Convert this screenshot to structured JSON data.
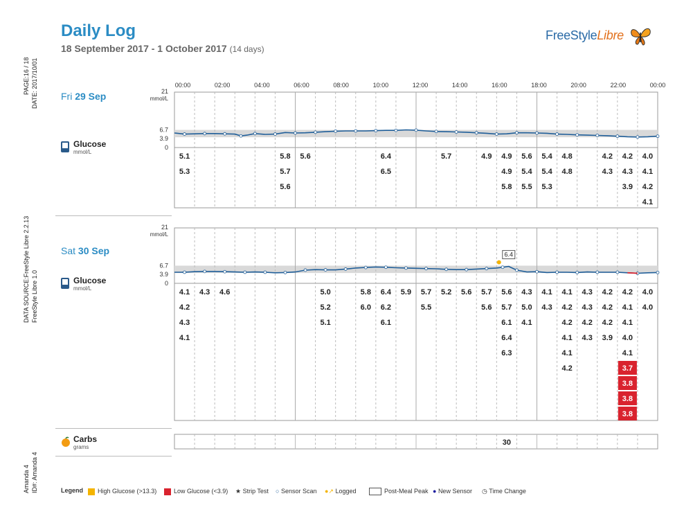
{
  "header": {
    "title": "Daily Log",
    "date_range": "18 September 2017 - 1 October 2017",
    "days": "(14 days)",
    "logo_free": "FreeStyle",
    "logo_libre": "Libre"
  },
  "side": {
    "page": "PAGE:16 / 18",
    "date": "DATE: 2017/10/01",
    "data_source": "DATA SOURCE:FreeStyle Libre 2.2.13",
    "device": "FreeStyle Libre 1.0",
    "name": "Amanda 4",
    "id": "ID#: Amanda 4"
  },
  "time_labels": [
    "00:00",
    "02:00",
    "04:00",
    "06:00",
    "08:00",
    "10:00",
    "12:00",
    "14:00",
    "16:00",
    "18:00",
    "20:00",
    "22:00",
    "00:00"
  ],
  "days": [
    {
      "weekday": "Fri",
      "date": "29 Sep",
      "glucose_label": "Glucose",
      "glucose_unit": "mmol/L",
      "y_top": "21",
      "y_unit": "mmol/L",
      "y_high": "6.7",
      "y_low": "3.9",
      "y_zero": "0",
      "peak_label": "",
      "readings": [
        {
          "col": 0,
          "values": [
            "5.1",
            "5.3"
          ]
        },
        {
          "col": 5,
          "values": [
            "5.8",
            "5.7",
            "5.6"
          ]
        },
        {
          "col": 6,
          "values": [
            "5.6"
          ]
        },
        {
          "col": 10,
          "values": [
            "6.4",
            "6.5"
          ]
        },
        {
          "col": 13,
          "values": [
            "5.7"
          ]
        },
        {
          "col": 15,
          "values": [
            "4.9"
          ]
        },
        {
          "col": 16,
          "values": [
            "4.9",
            "4.9",
            "5.8"
          ]
        },
        {
          "col": 17,
          "values": [
            "5.6",
            "5.4",
            "5.5"
          ]
        },
        {
          "col": 18,
          "values": [
            "5.4",
            "5.4",
            "5.3"
          ]
        },
        {
          "col": 19,
          "values": [
            "4.8",
            "4.8"
          ]
        },
        {
          "col": 21,
          "values": [
            "4.2",
            "4.3"
          ]
        },
        {
          "col": 22,
          "values": [
            "4.2",
            "4.3",
            "3.9"
          ]
        },
        {
          "col": 23,
          "values": [
            "4.0",
            "4.1",
            "4.2",
            "4.1"
          ]
        }
      ]
    },
    {
      "weekday": "Sat",
      "date": "30 Sep",
      "glucose_label": "Glucose",
      "glucose_unit": "mmol/L",
      "y_top": "21",
      "y_unit": "mmol/L",
      "y_high": "6.7",
      "y_low": "3.9",
      "y_zero": "0",
      "peak_label": "6.4",
      "readings": [
        {
          "col": 0,
          "values": [
            "4.1",
            "4.2",
            "4.3",
            "4.1"
          ]
        },
        {
          "col": 1,
          "values": [
            "4.3"
          ]
        },
        {
          "col": 2,
          "values": [
            "4.6"
          ]
        },
        {
          "col": 7,
          "values": [
            "5.0",
            "5.2",
            "5.1"
          ]
        },
        {
          "col": 9,
          "values": [
            "5.8",
            "6.0"
          ]
        },
        {
          "col": 10,
          "values": [
            "6.4",
            "6.2",
            "6.1"
          ]
        },
        {
          "col": 11,
          "values": [
            "5.9"
          ]
        },
        {
          "col": 12,
          "values": [
            "5.7",
            "5.5"
          ]
        },
        {
          "col": 13,
          "values": [
            "5.2"
          ]
        },
        {
          "col": 14,
          "values": [
            "5.6"
          ]
        },
        {
          "col": 15,
          "values": [
            "5.7",
            "5.6"
          ]
        },
        {
          "col": 16,
          "values": [
            "5.6",
            "5.7",
            "6.1",
            "6.4",
            "6.3"
          ]
        },
        {
          "col": 17,
          "values": [
            "4.3",
            "5.0",
            "4.1"
          ]
        },
        {
          "col": 18,
          "values": [
            "4.1",
            "4.3"
          ]
        },
        {
          "col": 19,
          "values": [
            "4.1",
            "4.2",
            "4.2",
            "4.1",
            "4.1",
            "4.2"
          ]
        },
        {
          "col": 20,
          "values": [
            "4.3",
            "4.3",
            "4.2",
            "4.3"
          ]
        },
        {
          "col": 21,
          "values": [
            "4.2",
            "4.2",
            "4.2",
            "3.9"
          ]
        },
        {
          "col": 22,
          "values": [
            "4.2",
            "4.1",
            "4.1",
            "4.0",
            "4.1",
            "3.7",
            "3.8",
            "3.8",
            "3.8"
          ],
          "low_from": 5
        },
        {
          "col": 23,
          "values": [
            "4.0",
            "4.0"
          ]
        }
      ]
    }
  ],
  "carbs": {
    "label": "Carbs",
    "unit": "grams",
    "entries": [
      {
        "col": 16,
        "value": "30"
      }
    ]
  },
  "legend": {
    "title": "Legend",
    "high": "High Glucose (>13.3)",
    "low": "Low Glucose (<3.9)",
    "strip": "Strip Test",
    "scan": "Sensor Scan",
    "logged": "Logged",
    "peak": "Post-Meal Peak",
    "sensor": "New Sensor",
    "time": "Time Change"
  },
  "colors": {
    "accent": "#2b8cc4",
    "line": "#1f5e99",
    "target_band": "#d9d9d9",
    "low": "#d9232e",
    "high": "#f4b400"
  },
  "chart_data": [
    {
      "type": "line",
      "title": "Fri 29 Sep",
      "ylabel": "mmol/L",
      "ylim": [
        0,
        21
      ],
      "target_range": [
        3.9,
        6.7
      ],
      "x_unit": "hours",
      "x": [
        0,
        0.5,
        1,
        1.5,
        2,
        2.5,
        3,
        3.3,
        3.6,
        4,
        4.5,
        5,
        5.5,
        6,
        6.5,
        7,
        7.5,
        8,
        8.5,
        9,
        9.5,
        10,
        10.5,
        11,
        11.5,
        12,
        12.5,
        13,
        13.5,
        14,
        14.5,
        15,
        15.5,
        16,
        16.5,
        17,
        17.5,
        18,
        18.5,
        19,
        19.5,
        20,
        20.5,
        21,
        21.5,
        22,
        22.5,
        23,
        23.5,
        24
      ],
      "y": [
        5.5,
        5.1,
        5.2,
        5.3,
        5.3,
        5.2,
        5.1,
        4.4,
        4.7,
        5.3,
        5.0,
        5.1,
        5.7,
        5.5,
        5.6,
        5.8,
        6.0,
        6.2,
        6.3,
        6.3,
        6.3,
        6.4,
        6.5,
        6.5,
        6.7,
        6.6,
        6.3,
        6.1,
        6.0,
        5.9,
        5.8,
        5.6,
        5.4,
        5.1,
        5.2,
        5.6,
        5.6,
        5.5,
        5.4,
        5.1,
        5.0,
        4.8,
        4.7,
        4.6,
        4.5,
        4.3,
        4.1,
        4.0,
        4.1,
        4.3
      ]
    },
    {
      "type": "line",
      "title": "Sat 30 Sep",
      "ylabel": "mmol/L",
      "ylim": [
        0,
        21
      ],
      "target_range": [
        3.9,
        6.7
      ],
      "x_unit": "hours",
      "x": [
        0,
        0.5,
        1,
        1.5,
        2,
        2.5,
        3,
        3.5,
        4,
        4.5,
        5,
        5.5,
        6,
        6.5,
        7,
        7.5,
        8,
        8.5,
        9,
        9.5,
        10,
        10.5,
        11,
        11.5,
        12,
        12.5,
        13,
        13.5,
        14,
        14.5,
        15,
        15.5,
        16,
        16.3,
        16.6,
        17,
        17.5,
        18,
        18.5,
        19,
        19.5,
        20,
        20.5,
        21,
        21.5,
        22,
        22.5,
        23,
        23.5,
        24
      ],
      "y": [
        4.2,
        4.2,
        4.4,
        4.5,
        4.5,
        4.4,
        4.3,
        4.2,
        4.3,
        4.2,
        4.0,
        4.1,
        4.3,
        5.0,
        5.2,
        5.1,
        5.1,
        5.4,
        5.8,
        6.0,
        6.2,
        6.1,
        5.9,
        5.8,
        5.7,
        5.6,
        5.5,
        5.3,
        5.2,
        5.2,
        5.4,
        5.6,
        5.8,
        6.1,
        6.4,
        5.0,
        4.3,
        4.4,
        4.1,
        4.2,
        4.2,
        4.1,
        4.3,
        4.2,
        4.2,
        4.2,
        4.0,
        3.8,
        4.0,
        4.1
      ]
    }
  ]
}
